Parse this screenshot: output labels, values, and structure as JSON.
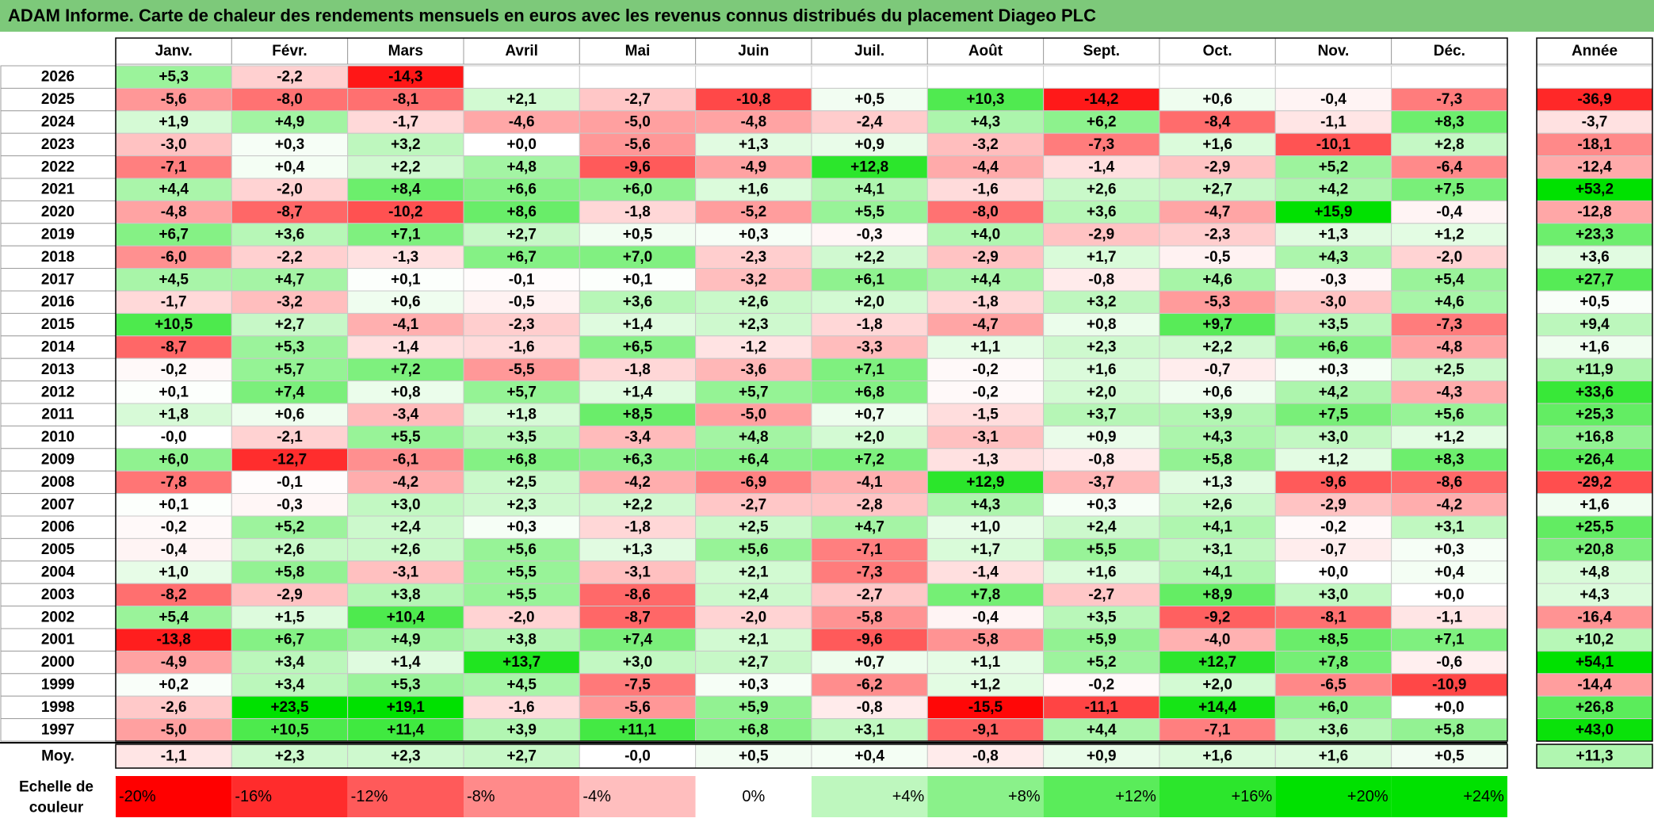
{
  "title": "ADAM Informe. Carte de chaleur des rendements mensuels en euros avec les revenus connus distribués du placement Diageo PLC",
  "chart_data": {
    "type": "heatmap",
    "months": [
      "Janv.",
      "Févr.",
      "Mars",
      "Avril",
      "Mai",
      "Juin",
      "Juil.",
      "Août",
      "Sept.",
      "Oct.",
      "Nov.",
      "Déc."
    ],
    "year_header": "Année",
    "rows": [
      {
        "year": "2026",
        "values": [
          "+5,3",
          "-2,2",
          "-14,3",
          "",
          "",
          "",
          "",
          "",
          "",
          "",
          "",
          ""
        ],
        "annual": ""
      },
      {
        "year": "2025",
        "values": [
          "-5,6",
          "-8,0",
          "-8,1",
          "+2,1",
          "-2,7",
          "-10,8",
          "+0,5",
          "+10,3",
          "-14,2",
          "+0,6",
          "-0,4",
          "-7,3"
        ],
        "annual": "-36,9"
      },
      {
        "year": "2024",
        "values": [
          "+1,9",
          "+4,9",
          "-1,7",
          "-4,6",
          "-5,0",
          "-4,8",
          "-2,4",
          "+4,3",
          "+6,2",
          "-8,4",
          "-1,1",
          "+8,3"
        ],
        "annual": "-3,7"
      },
      {
        "year": "2023",
        "values": [
          "-3,0",
          "+0,3",
          "+3,2",
          "+0,0",
          "-5,6",
          "+1,3",
          "+0,9",
          "-3,2",
          "-7,3",
          "+1,6",
          "-10,1",
          "+2,8"
        ],
        "annual": "-18,1"
      },
      {
        "year": "2022",
        "values": [
          "-7,1",
          "+0,4",
          "+2,2",
          "+4,8",
          "-9,6",
          "-4,9",
          "+12,8",
          "-4,4",
          "-1,4",
          "-2,9",
          "+5,2",
          "-6,4"
        ],
        "annual": "-12,4"
      },
      {
        "year": "2021",
        "values": [
          "+4,4",
          "-2,0",
          "+8,4",
          "+6,6",
          "+6,0",
          "+1,6",
          "+4,1",
          "-1,6",
          "+2,6",
          "+2,7",
          "+4,2",
          "+7,5"
        ],
        "annual": "+53,2"
      },
      {
        "year": "2020",
        "values": [
          "-4,8",
          "-8,7",
          "-10,2",
          "+8,6",
          "-1,8",
          "-5,2",
          "+5,5",
          "-8,0",
          "+3,6",
          "-4,7",
          "+15,9",
          "-0,4"
        ],
        "annual": "-12,8"
      },
      {
        "year": "2019",
        "values": [
          "+6,7",
          "+3,6",
          "+7,1",
          "+2,7",
          "+0,5",
          "+0,3",
          "-0,3",
          "+4,0",
          "-2,9",
          "-2,3",
          "+1,3",
          "+1,2"
        ],
        "annual": "+23,3"
      },
      {
        "year": "2018",
        "values": [
          "-6,0",
          "-2,2",
          "-1,3",
          "+6,7",
          "+7,0",
          "-2,3",
          "+2,2",
          "-2,9",
          "+1,7",
          "-0,5",
          "+4,3",
          "-2,0"
        ],
        "annual": "+3,6"
      },
      {
        "year": "2017",
        "values": [
          "+4,5",
          "+4,7",
          "+0,1",
          "-0,1",
          "+0,1",
          "-3,2",
          "+6,1",
          "+4,4",
          "-0,8",
          "+4,6",
          "-0,3",
          "+5,4"
        ],
        "annual": "+27,7"
      },
      {
        "year": "2016",
        "values": [
          "-1,7",
          "-3,2",
          "+0,6",
          "-0,5",
          "+3,6",
          "+2,6",
          "+2,0",
          "-1,8",
          "+3,2",
          "-5,3",
          "-3,0",
          "+4,6"
        ],
        "annual": "+0,5"
      },
      {
        "year": "2015",
        "values": [
          "+10,5",
          "+2,7",
          "-4,1",
          "-2,3",
          "+1,4",
          "+2,3",
          "-1,8",
          "-4,7",
          "+0,8",
          "+9,7",
          "+3,5",
          "-7,3"
        ],
        "annual": "+9,4"
      },
      {
        "year": "2014",
        "values": [
          "-8,7",
          "+5,3",
          "-1,4",
          "-1,6",
          "+6,5",
          "-1,2",
          "-3,3",
          "+1,1",
          "+2,3",
          "+2,2",
          "+6,6",
          "-4,8"
        ],
        "annual": "+1,6"
      },
      {
        "year": "2013",
        "values": [
          "-0,2",
          "+5,7",
          "+7,2",
          "-5,5",
          "-1,8",
          "-3,6",
          "+7,1",
          "-0,2",
          "+1,6",
          "-0,7",
          "+0,3",
          "+2,5"
        ],
        "annual": "+11,9"
      },
      {
        "year": "2012",
        "values": [
          "+0,1",
          "+7,4",
          "+0,8",
          "+5,7",
          "+1,4",
          "+5,7",
          "+6,8",
          "-0,2",
          "+2,0",
          "+0,6",
          "+4,2",
          "-4,3"
        ],
        "annual": "+33,6"
      },
      {
        "year": "2011",
        "values": [
          "+1,8",
          "+0,6",
          "-3,4",
          "+1,8",
          "+8,5",
          "-5,0",
          "+0,7",
          "-1,5",
          "+3,7",
          "+3,9",
          "+7,5",
          "+5,6"
        ],
        "annual": "+25,3"
      },
      {
        "year": "2010",
        "values": [
          "-0,0",
          "-2,1",
          "+5,5",
          "+3,5",
          "-3,4",
          "+4,8",
          "+2,0",
          "-3,1",
          "+0,9",
          "+4,3",
          "+3,0",
          "+1,2"
        ],
        "annual": "+16,8"
      },
      {
        "year": "2009",
        "values": [
          "+6,0",
          "-12,7",
          "-6,1",
          "+6,8",
          "+6,3",
          "+6,4",
          "+7,2",
          "-1,3",
          "-0,8",
          "+5,8",
          "+1,2",
          "+8,3"
        ],
        "annual": "+26,4"
      },
      {
        "year": "2008",
        "values": [
          "-7,8",
          "-0,1",
          "-4,2",
          "+2,5",
          "-4,2",
          "-6,9",
          "-4,1",
          "+12,9",
          "-3,7",
          "+1,3",
          "-9,6",
          "-8,6"
        ],
        "annual": "-29,2"
      },
      {
        "year": "2007",
        "values": [
          "+0,1",
          "-0,3",
          "+3,0",
          "+2,3",
          "+2,2",
          "-2,7",
          "-2,8",
          "+4,3",
          "+0,3",
          "+2,6",
          "-2,9",
          "-4,2"
        ],
        "annual": "+1,6"
      },
      {
        "year": "2006",
        "values": [
          "-0,2",
          "+5,2",
          "+2,4",
          "+0,3",
          "-1,8",
          "+2,5",
          "+4,7",
          "+1,0",
          "+2,4",
          "+4,1",
          "-0,2",
          "+3,1"
        ],
        "annual": "+25,5"
      },
      {
        "year": "2005",
        "values": [
          "-0,4",
          "+2,6",
          "+2,6",
          "+5,6",
          "+1,3",
          "+5,6",
          "-7,1",
          "+1,7",
          "+5,5",
          "+3,1",
          "-0,7",
          "+0,3"
        ],
        "annual": "+20,8"
      },
      {
        "year": "2004",
        "values": [
          "+1,0",
          "+5,8",
          "-3,1",
          "+5,5",
          "-3,1",
          "+2,1",
          "-7,3",
          "-1,4",
          "+1,6",
          "+4,1",
          "+0,0",
          "+0,4"
        ],
        "annual": "+4,8"
      },
      {
        "year": "2003",
        "values": [
          "-8,2",
          "-2,9",
          "+3,8",
          "+5,5",
          "-8,6",
          "+2,4",
          "-2,7",
          "+7,8",
          "-2,7",
          "+8,9",
          "+3,0",
          "+0,0"
        ],
        "annual": "+4,3"
      },
      {
        "year": "2002",
        "values": [
          "+5,4",
          "+1,5",
          "+10,4",
          "-2,0",
          "-8,7",
          "-2,0",
          "-5,8",
          "-0,4",
          "+3,5",
          "-9,2",
          "-8,1",
          "-1,1"
        ],
        "annual": "-16,4"
      },
      {
        "year": "2001",
        "values": [
          "-13,8",
          "+6,7",
          "+4,9",
          "+3,8",
          "+7,4",
          "+2,1",
          "-9,6",
          "-5,8",
          "+5,9",
          "-4,0",
          "+8,5",
          "+7,1"
        ],
        "annual": "+10,2"
      },
      {
        "year": "2000",
        "values": [
          "-4,9",
          "+3,4",
          "+1,4",
          "+13,7",
          "+3,0",
          "+2,7",
          "+0,7",
          "+1,1",
          "+5,2",
          "+12,7",
          "+7,8",
          "-0,6"
        ],
        "annual": "+54,1"
      },
      {
        "year": "1999",
        "values": [
          "+0,2",
          "+3,4",
          "+5,3",
          "+4,5",
          "-7,5",
          "+0,3",
          "-6,2",
          "+1,2",
          "-0,2",
          "+2,0",
          "-6,5",
          "-10,9"
        ],
        "annual": "-14,4"
      },
      {
        "year": "1998",
        "values": [
          "-2,6",
          "+23,5",
          "+19,1",
          "-1,6",
          "-5,6",
          "+5,9",
          "-0,8",
          "-15,5",
          "-11,1",
          "+14,4",
          "+6,0",
          "+0,0"
        ],
        "annual": "+26,8"
      },
      {
        "year": "1997",
        "values": [
          "-5,0",
          "+10,5",
          "+11,4",
          "+3,9",
          "+11,1",
          "+6,8",
          "+3,1",
          "-9,1",
          "+4,4",
          "-7,1",
          "+3,6",
          "+5,8"
        ],
        "annual": "+43,0"
      }
    ],
    "average": {
      "label": "Moy.",
      "values": [
        "-1,1",
        "+2,3",
        "+2,3",
        "+2,7",
        "-0,0",
        "+0,5",
        "+0,4",
        "-0,8",
        "+0,9",
        "+1,6",
        "+1,6",
        "+0,5"
      ],
      "annual": "+11,3"
    },
    "color_scale": {
      "label_line1": "Echelle de",
      "label_line2": "couleur",
      "stops": [
        "-20%",
        "-16%",
        "-12%",
        "-8%",
        "-4%",
        "0%",
        "+4%",
        "+8%",
        "+12%",
        "+16%",
        "+20%",
        "+24%"
      ]
    },
    "colors": {
      "negative": "#ff0000",
      "neutral": "#ffffff",
      "positive": "#00e000",
      "title_bar": "#7dc97a"
    }
  }
}
